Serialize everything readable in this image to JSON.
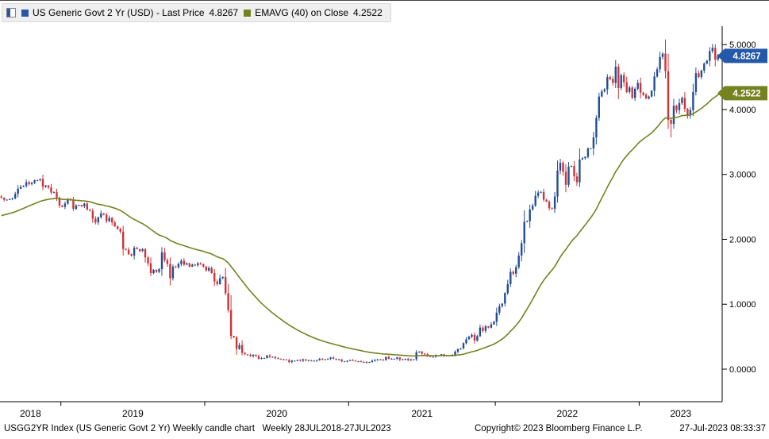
{
  "legend": {
    "series": [
      {
        "name": "US Generic Govt 2 Yr (USD) - Last Price",
        "value": "4.8267",
        "color": "#2d55a5"
      },
      {
        "name": "EMAVG (40)  on Close",
        "value": "4.2522",
        "color": "#758220"
      }
    ]
  },
  "footer": {
    "left": "USGG2YR Index (US Generic Govt 2 Yr) Weekly candle chart   Weekly 28JUL2018-27JUL2023",
    "copyright": "Copyright© 2023 Bloomberg Finance L.P.",
    "datetime": "27-Jul-2023 08:33:37"
  },
  "axes": {
    "y_ticks": [
      "5.0000",
      "4.0000",
      "3.0000",
      "2.0000",
      "1.0000",
      "0.0000"
    ],
    "y_values": [
      5,
      4,
      3,
      2,
      1,
      0
    ],
    "x_labels": [
      "2018",
      "2019",
      "2020",
      "2021",
      "2022",
      "2023"
    ]
  },
  "price_badges": [
    {
      "text": "4.8267",
      "value": 4.8267,
      "bg": "#2458a8",
      "fg": "#ffffff"
    },
    {
      "text": "4.2522",
      "value": 4.2522,
      "bg": "#758220",
      "fg": "#ffffff"
    }
  ],
  "chart_data": {
    "type": "candlestick",
    "title": "US Generic Govt 2 Yr (USD)",
    "security": "USGG2YR Index",
    "frequency": "Weekly",
    "range": "28JUL2018-27JUL2023",
    "last_price": 4.8267,
    "ylim": [
      0,
      5
    ],
    "grid": false,
    "overlay": {
      "type": "line",
      "name": "EMAVG (40) on Close",
      "period": 40,
      "seed": 2.35,
      "last": 4.2522
    },
    "colors": {
      "up_candle": "#234e94",
      "down_candle": "#cf3339",
      "ema_line": "#758220",
      "axis": "#000000"
    },
    "years": [
      {
        "label": "2018",
        "weeks": 22
      },
      {
        "label": "2019",
        "weeks": 52
      },
      {
        "label": "2020",
        "weeks": 52
      },
      {
        "label": "2021",
        "weeks": 53
      },
      {
        "label": "2022",
        "weeks": 52
      },
      {
        "label": "2023",
        "weeks": 30
      }
    ],
    "weekly_closes": [
      2.64,
      2.61,
      2.61,
      2.62,
      2.63,
      2.7,
      2.78,
      2.81,
      2.82,
      2.88,
      2.85,
      2.87,
      2.91,
      2.91,
      2.93,
      2.81,
      2.83,
      2.8,
      2.72,
      2.73,
      2.64,
      2.52,
      2.5,
      2.55,
      2.62,
      2.6,
      2.47,
      2.52,
      2.53,
      2.51,
      2.55,
      2.46,
      2.44,
      2.32,
      2.26,
      2.34,
      2.4,
      2.38,
      2.28,
      2.33,
      2.26,
      2.2,
      2.16,
      2.12,
      1.85,
      1.84,
      1.77,
      1.75,
      1.87,
      1.85,
      1.82,
      1.85,
      1.72,
      1.63,
      1.48,
      1.53,
      1.5,
      1.54,
      1.8,
      1.68,
      1.62,
      1.4,
      1.58,
      1.57,
      1.62,
      1.67,
      1.61,
      1.63,
      1.58,
      1.61,
      1.6,
      1.63,
      1.62,
      1.58,
      1.52,
      1.56,
      1.48,
      1.35,
      1.31,
      1.4,
      1.42,
      1.17,
      0.91,
      0.51,
      0.49,
      0.31,
      0.37,
      0.25,
      0.23,
      0.22,
      0.2,
      0.22,
      0.2,
      0.16,
      0.17,
      0.17,
      0.21,
      0.19,
      0.19,
      0.17,
      0.16,
      0.15,
      0.15,
      0.14,
      0.11,
      0.13,
      0.13,
      0.14,
      0.13,
      0.15,
      0.13,
      0.14,
      0.13,
      0.13,
      0.14,
      0.16,
      0.15,
      0.15,
      0.16,
      0.18,
      0.16,
      0.15,
      0.15,
      0.12,
      0.12,
      0.13,
      0.14,
      0.13,
      0.12,
      0.12,
      0.11,
      0.1,
      0.11,
      0.11,
      0.13,
      0.14,
      0.15,
      0.15,
      0.14,
      0.19,
      0.16,
      0.16,
      0.16,
      0.18,
      0.15,
      0.15,
      0.16,
      0.14,
      0.15,
      0.15,
      0.26,
      0.27,
      0.24,
      0.23,
      0.2,
      0.19,
      0.19,
      0.21,
      0.21,
      0.23,
      0.21,
      0.21,
      0.21,
      0.22,
      0.27,
      0.31,
      0.32,
      0.4,
      0.46,
      0.5,
      0.53,
      0.44,
      0.51,
      0.64,
      0.59,
      0.66,
      0.64,
      0.69,
      0.73,
      0.87,
      0.97,
      1.01,
      1.17,
      1.31,
      1.5,
      1.47,
      1.57,
      1.75,
      1.94,
      2.27,
      2.28,
      2.46,
      2.52,
      2.67,
      2.72,
      2.73,
      2.61,
      2.58,
      2.48,
      2.47,
      2.66,
      3.06,
      3.18,
      3.04,
      2.84,
      3.12,
      3.13,
      2.97,
      2.88,
      3.23,
      3.25,
      3.27,
      3.4,
      3.4,
      3.57,
      3.87,
      4.2,
      4.28,
      4.31,
      4.5,
      4.47,
      4.41,
      4.66,
      4.33,
      4.53,
      4.42,
      4.27,
      4.34,
      4.18,
      4.32,
      4.41,
      4.26,
      4.23,
      4.17,
      4.2,
      4.29,
      4.51,
      4.62,
      4.81,
      4.86,
      4.59,
      3.84,
      3.78,
      4.06,
      3.99,
      4.1,
      4.18,
      4.01,
      3.91,
      3.99,
      4.27,
      4.56,
      4.5,
      4.6,
      4.71,
      4.75,
      4.9,
      4.95,
      4.77,
      4.84,
      4.8267
    ],
    "wick_overrides": [
      {
        "i": 240,
        "high": 5.08
      },
      {
        "i": 241,
        "low": 3.7
      },
      {
        "i": 242,
        "low": 3.57
      },
      {
        "i": 257,
        "high": 5.01
      }
    ]
  }
}
